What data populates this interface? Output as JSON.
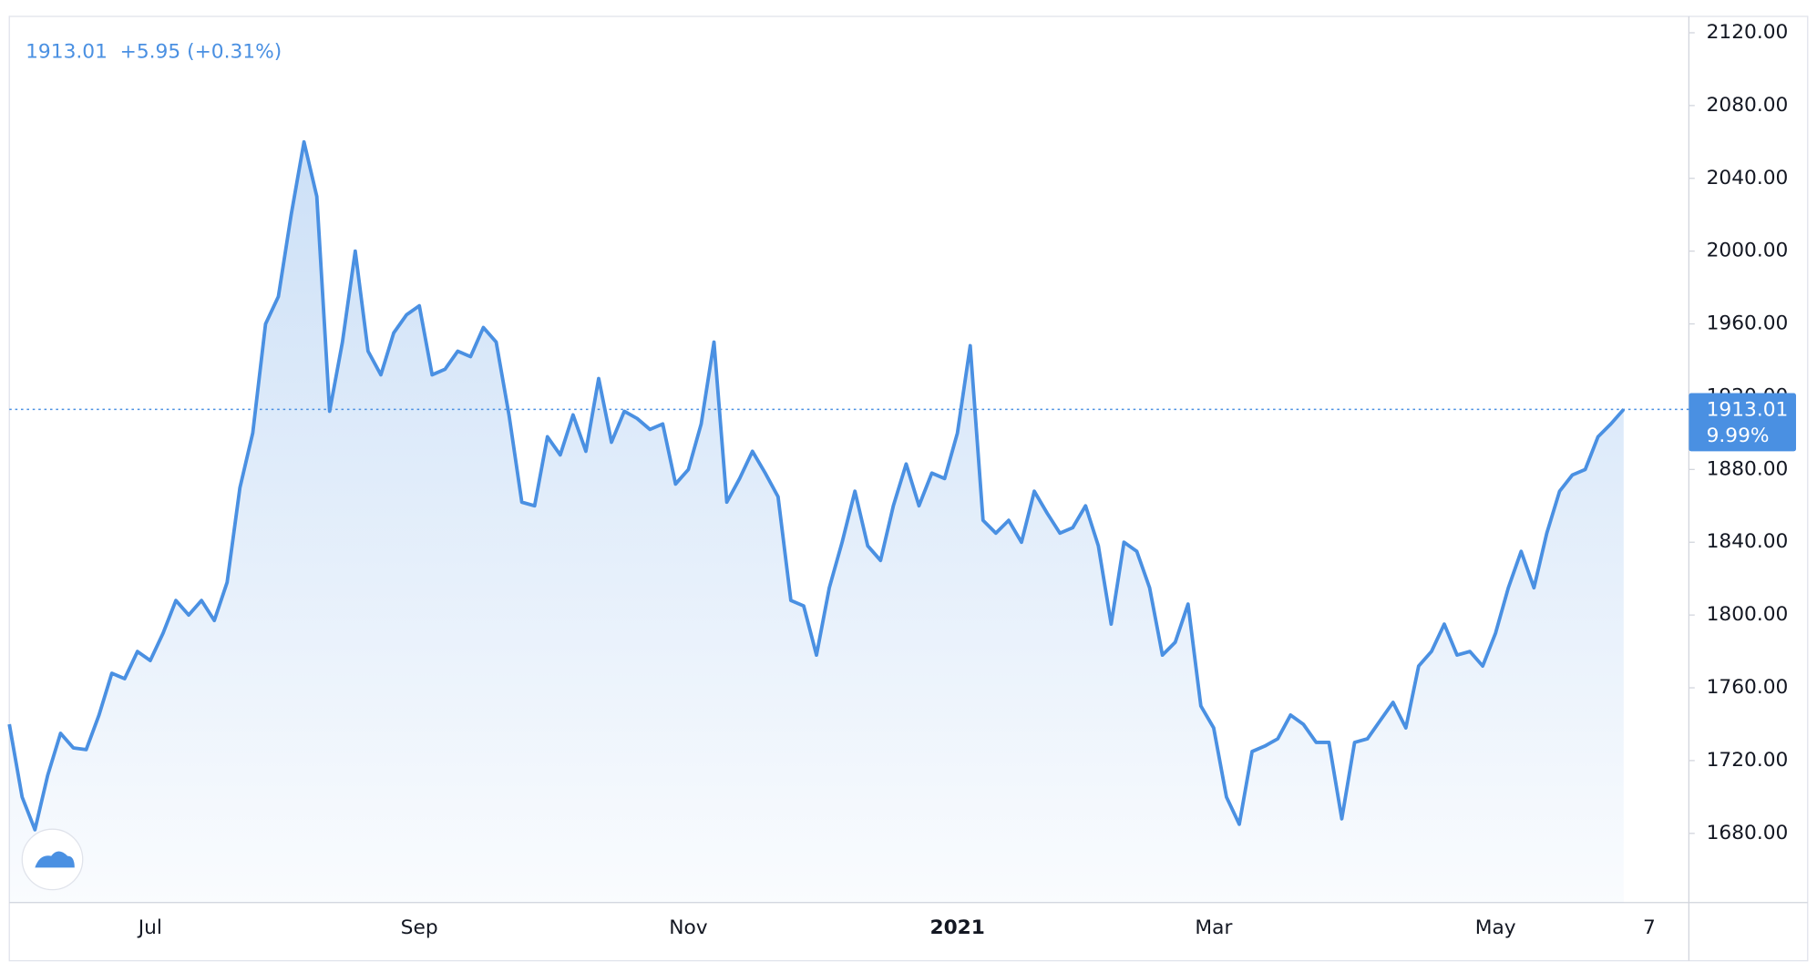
{
  "chart_data": {
    "type": "area",
    "header": {
      "price": "1913.01",
      "change": "+5.95 (+0.31%)"
    },
    "last_label": {
      "price": "1913.01",
      "percent": "9.99%"
    },
    "last_value": 1913.01,
    "color": "#4a90e2",
    "ylim": [
      1642,
      2129
    ],
    "yticks": [
      {
        "value": 1680,
        "label": "1680.00"
      },
      {
        "value": 1720,
        "label": "1720.00"
      },
      {
        "value": 1760,
        "label": "1760.00"
      },
      {
        "value": 1800,
        "label": "1800.00"
      },
      {
        "value": 1840,
        "label": "1840.00"
      },
      {
        "value": 1880,
        "label": "1880.00"
      },
      {
        "value": 1920,
        "label": "1920.00"
      },
      {
        "value": 1960,
        "label": "1960.00"
      },
      {
        "value": 2000,
        "label": "2000.00"
      },
      {
        "value": 2040,
        "label": "2040.00"
      },
      {
        "value": 2080,
        "label": "2080.00"
      },
      {
        "value": 2120,
        "label": "2120.00"
      }
    ],
    "categories": [
      null,
      null,
      null,
      null,
      null,
      null,
      null,
      null,
      null,
      null,
      null,
      "Jul",
      null,
      null,
      null,
      null,
      null,
      null,
      null,
      null,
      null,
      null,
      null,
      null,
      null,
      null,
      null,
      null,
      null,
      null,
      null,
      null,
      "Sep",
      null,
      null,
      null,
      null,
      null,
      null,
      null,
      null,
      null,
      null,
      null,
      null,
      null,
      null,
      null,
      null,
      null,
      null,
      null,
      null,
      "Nov",
      null,
      null,
      null,
      null,
      null,
      null,
      null,
      null,
      null,
      null,
      null,
      null,
      null,
      null,
      null,
      null,
      null,
      null,
      null,
      null,
      "2021",
      null,
      null,
      null,
      null,
      null,
      null,
      null,
      null,
      null,
      null,
      null,
      null,
      null,
      null,
      null,
      null,
      null,
      null,
      null,
      "Mar",
      null,
      null,
      null,
      null,
      null,
      null,
      null,
      null,
      null,
      null,
      null,
      null,
      null,
      null,
      null,
      null,
      null,
      null,
      null,
      null,
      null,
      "May",
      null,
      null,
      null,
      null,
      null,
      null,
      null,
      null,
      null,
      null,
      null,
      "7"
    ],
    "values": [
      1740,
      1700,
      1682,
      1712,
      1735,
      1727,
      1726,
      1745,
      1768,
      1765,
      1780,
      1775,
      1790,
      1808,
      1800,
      1808,
      1797,
      1818,
      1870,
      1900,
      1960,
      1975,
      2020,
      2060,
      2030,
      1912,
      1950,
      2000,
      1945,
      1932,
      1955,
      1965,
      1970,
      1932,
      1935,
      1945,
      1942,
      1958,
      1950,
      1910,
      1862,
      1860,
      1898,
      1888,
      1910,
      1890,
      1930,
      1895,
      1912,
      1908,
      1902,
      1905,
      1872,
      1880,
      1905,
      1950,
      1862,
      1875,
      1890,
      1878,
      1865,
      1808,
      1805,
      1778,
      1815,
      1840,
      1868,
      1838,
      1830,
      1860,
      1883,
      1860,
      1878,
      1875,
      1900,
      1948,
      1852,
      1845,
      1852,
      1840,
      1868,
      1856,
      1845,
      1848,
      1860,
      1838,
      1795,
      1840,
      1835,
      1815,
      1778,
      1785,
      1806,
      1750,
      1738,
      1700,
      1685,
      1725,
      1728,
      1732,
      1745,
      1740,
      1730,
      1730,
      1688,
      1730,
      1732,
      1742,
      1752,
      1738,
      1772,
      1780,
      1795,
      1778,
      1780,
      1772,
      1790,
      1815,
      1835,
      1815,
      1845,
      1868,
      1877,
      1880,
      1898,
      1905,
      1913.01,
      null,
      null
    ]
  }
}
